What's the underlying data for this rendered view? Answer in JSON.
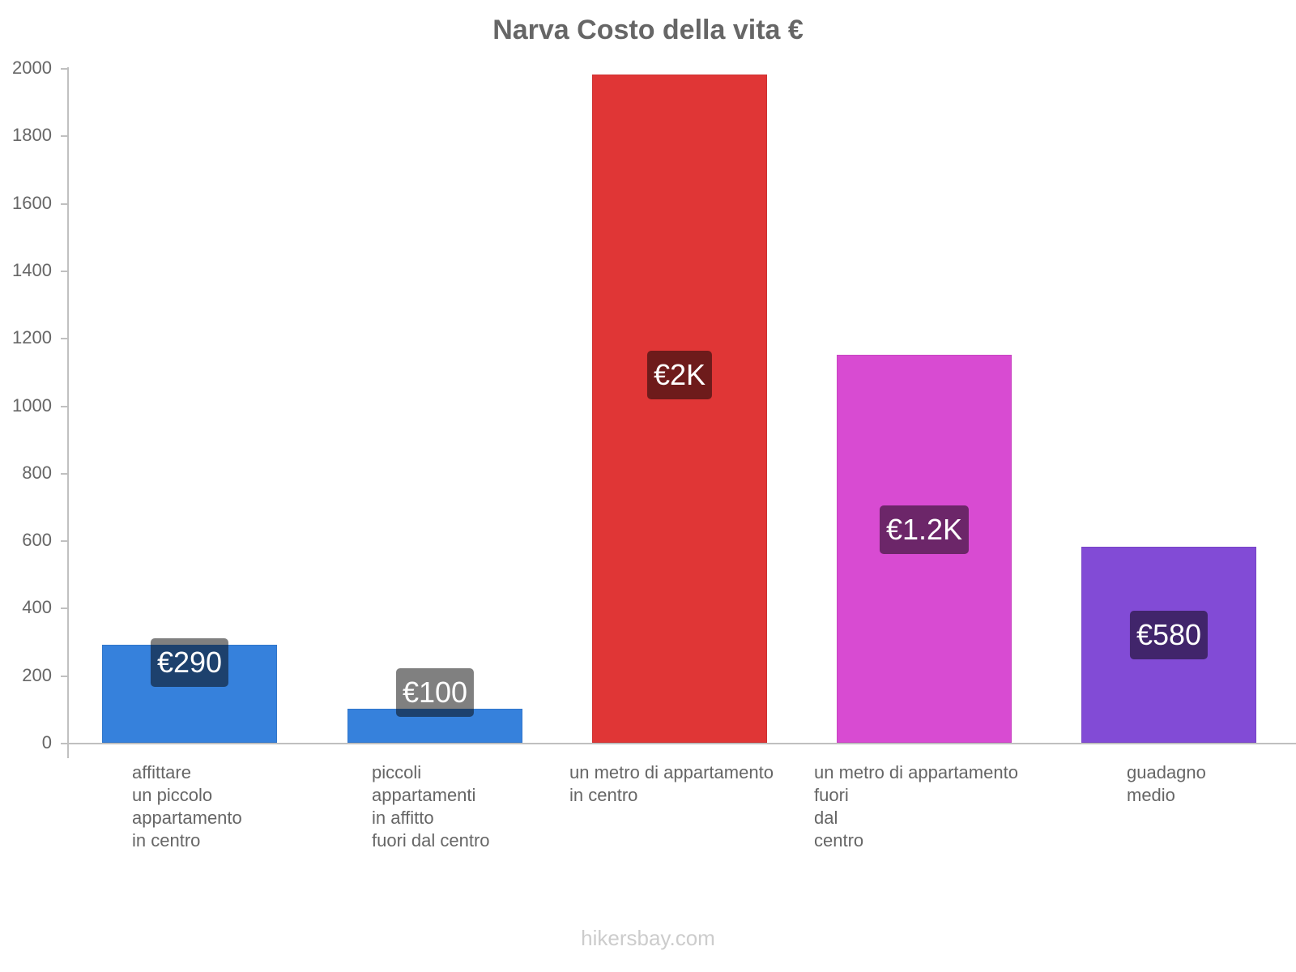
{
  "chart_data": {
    "type": "bar",
    "title": "Narva Costo della vita €",
    "xlabel": "",
    "ylabel": "",
    "ylim": [
      0,
      2000
    ],
    "yticks": [
      0,
      200,
      400,
      600,
      800,
      1000,
      1200,
      1400,
      1600,
      1800,
      2000
    ],
    "grid": false,
    "legend": null,
    "categories": [
      "affittare un piccolo appartamento in centro",
      "piccoli appartamenti in affitto fuori dal centro",
      "un metro di appartamento in centro",
      "un metro di appartamento fuori dal centro",
      "guadagno medio"
    ],
    "values": [
      290,
      100,
      1980,
      1150,
      580
    ],
    "data_labels": [
      "€290",
      "€100",
      "€2K",
      "€1.2K",
      "€580"
    ],
    "colors": [
      "#3681dc",
      "#3681dc",
      "#e03636",
      "#d84bd2",
      "#824bd6"
    ],
    "label_colors": [
      "#1d416d",
      "#1d416d",
      "#6e1b1b",
      "#6c2669",
      "#41256b"
    ]
  },
  "title": "Narva Costo della vita €",
  "y_ticks": [
    "0",
    "200",
    "400",
    "600",
    "800",
    "1000",
    "1200",
    "1400",
    "1600",
    "1800",
    "2000"
  ],
  "bars": [
    {
      "label_lines": "affittare\nun piccolo\nappartamento\nin centro",
      "value_label": "€290"
    },
    {
      "label_lines": "piccoli\nappartamenti\nin affitto\nfuori dal centro",
      "value_label": "€100"
    },
    {
      "label_lines": "un metro di appartamento\nin centro",
      "value_label": "€2K"
    },
    {
      "label_lines": "un metro di appartamento\nfuori\ndal\ncentro",
      "value_label": "€1.2K"
    },
    {
      "label_lines": "guadagno\nmedio",
      "value_label": "€580"
    }
  ],
  "footer": "hikersbay.com"
}
